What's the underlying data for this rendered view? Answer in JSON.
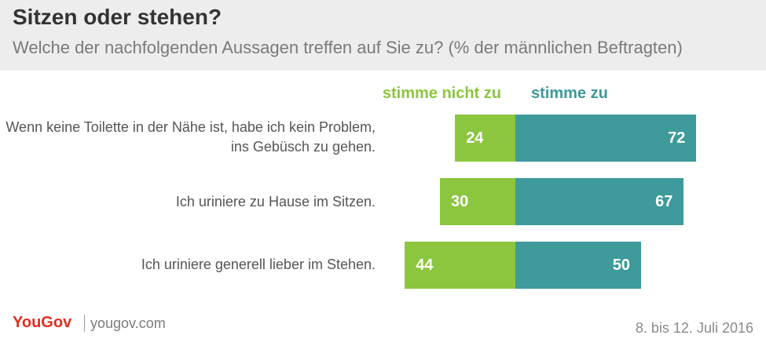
{
  "header": {
    "title": "Sitzen oder stehen?",
    "subtitle": "Welche der nachfolgenden Aussagen treffen auf Sie zu?  (% der männlichen Beftragten)"
  },
  "colors": {
    "disagree": "#8cc63f",
    "agree": "#3e9a9b",
    "brand": "#e0301e"
  },
  "chart_data": {
    "type": "bar",
    "orientation": "horizontal-diverging",
    "title": "Sitzen oder stehen?",
    "subtitle": "Welche der nachfolgenden Aussagen treffen auf Sie zu?  (% der männlichen Beftragten)",
    "categories": [
      "Wenn keine Toilette in der Nähe ist, habe ich kein Problem, ins Gebüsch zu gehen.",
      "Ich uriniere zu Hause im Sitzen.",
      "Ich uriniere generell lieber im Stehen."
    ],
    "series": [
      {
        "name": "stimme nicht zu",
        "values": [
          24,
          30,
          44
        ]
      },
      {
        "name": "stimme zu",
        "values": [
          72,
          67,
          50
        ]
      }
    ],
    "unit": "%",
    "legend": "top"
  },
  "footer": {
    "brand": "YouGov",
    "url": "yougov.com",
    "date": "8. bis 12. Juli 2016"
  }
}
